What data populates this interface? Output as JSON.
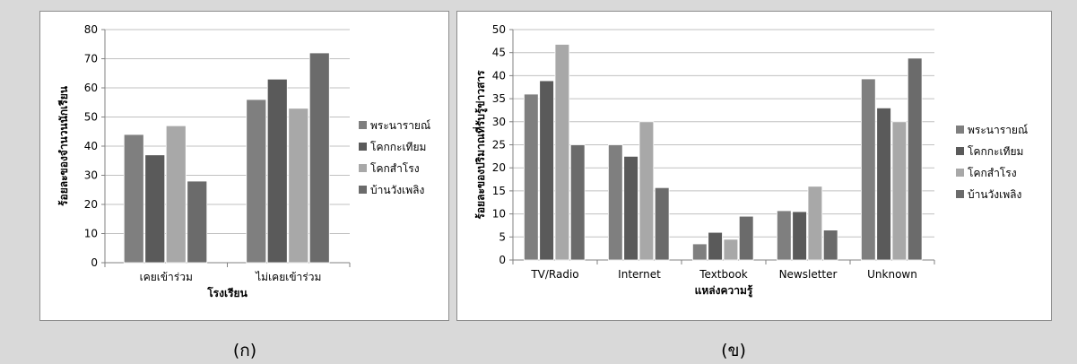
{
  "captions": [
    "(ก)",
    "(ข)"
  ],
  "chart_data": [
    {
      "type": "bar",
      "title": "",
      "xlabel": "โรงเรียน",
      "ylabel": "ร้อยละของจำนวนนักเรียน",
      "categories": [
        "เคยเข้าร่วม",
        "ไม่เคยเข้าร่วม"
      ],
      "ylim": [
        0,
        80
      ],
      "yticks": [
        0,
        10,
        20,
        30,
        40,
        50,
        60,
        70,
        80
      ],
      "grid": true,
      "legend": "right",
      "series": [
        {
          "name": "พระนารายณ์",
          "color": "#7f7f7f",
          "values": [
            44,
            56
          ]
        },
        {
          "name": "โคกกะเทียม",
          "color": "#5a5a5a",
          "values": [
            37,
            63
          ]
        },
        {
          "name": "โคกสำโรง",
          "color": "#a8a8a8",
          "values": [
            47,
            53
          ]
        },
        {
          "name": "บ้านวังเพลิง",
          "color": "#6b6b6b",
          "values": [
            28,
            72
          ]
        }
      ]
    },
    {
      "type": "bar",
      "title": "",
      "xlabel": "แหล่งความรู้",
      "ylabel": "ร้อยละของปริมาณที่รับรู้ข่าวสาร",
      "categories": [
        "TV/Radio",
        "Internet",
        "Textbook",
        "Newsletter",
        "Unknown"
      ],
      "ylim": [
        0,
        50
      ],
      "yticks": [
        0,
        5,
        10,
        15,
        20,
        25,
        30,
        35,
        40,
        45,
        50
      ],
      "grid": true,
      "legend": "right",
      "series": [
        {
          "name": "พระนารายณ์",
          "color": "#7f7f7f",
          "values": [
            36,
            25,
            3.5,
            10.7,
            39.3
          ]
        },
        {
          "name": "โคกกะเทียม",
          "color": "#5a5a5a",
          "values": [
            38.9,
            22.5,
            6,
            10.5,
            33
          ]
        },
        {
          "name": "โคกสำโรง",
          "color": "#a8a8a8",
          "values": [
            46.8,
            30,
            4.5,
            16,
            30
          ]
        },
        {
          "name": "บ้านวังเพลิง",
          "color": "#6b6b6b",
          "values": [
            25,
            15.7,
            9.5,
            6.5,
            43.8
          ]
        }
      ]
    }
  ]
}
